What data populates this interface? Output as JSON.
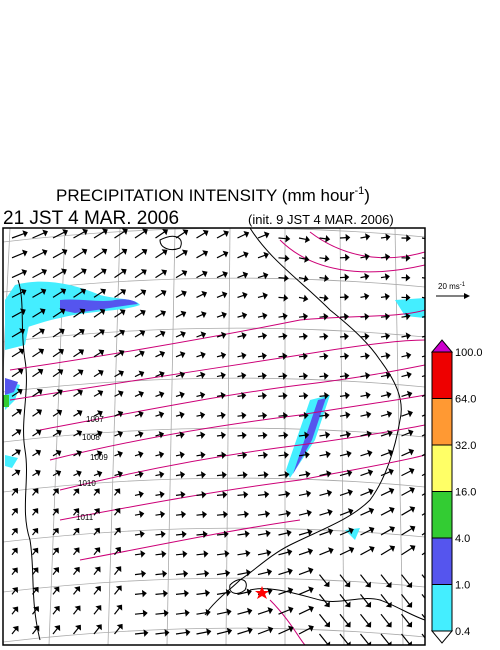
{
  "header": {
    "title": {
      "text": "PRECIPITATION INTENSITY (mm hour",
      "sup": "-1",
      "close": ")"
    },
    "time": "21 JST 4 MAR. 2006",
    "init": "(init. 9 JST 4 MAR. 2006)"
  },
  "reference_vector": {
    "text": "20 ms",
    "sup": "-1"
  },
  "isobar_labels": [
    "1007",
    "1008",
    "1009",
    "1010",
    "1011"
  ],
  "legend": [
    {
      "label": "100.0",
      "color": "#cc00cc"
    },
    {
      "label": "64.0",
      "color": "#ee0000"
    },
    {
      "label": "32.0",
      "color": "#ff9933"
    },
    {
      "label": "16.0",
      "color": "#ffff66"
    },
    {
      "label": "4.0",
      "color": "#33cc33"
    },
    {
      "label": "1.0",
      "color": "#5555ee"
    },
    {
      "label": "0.4",
      "color": "#44eeff"
    }
  ]
}
